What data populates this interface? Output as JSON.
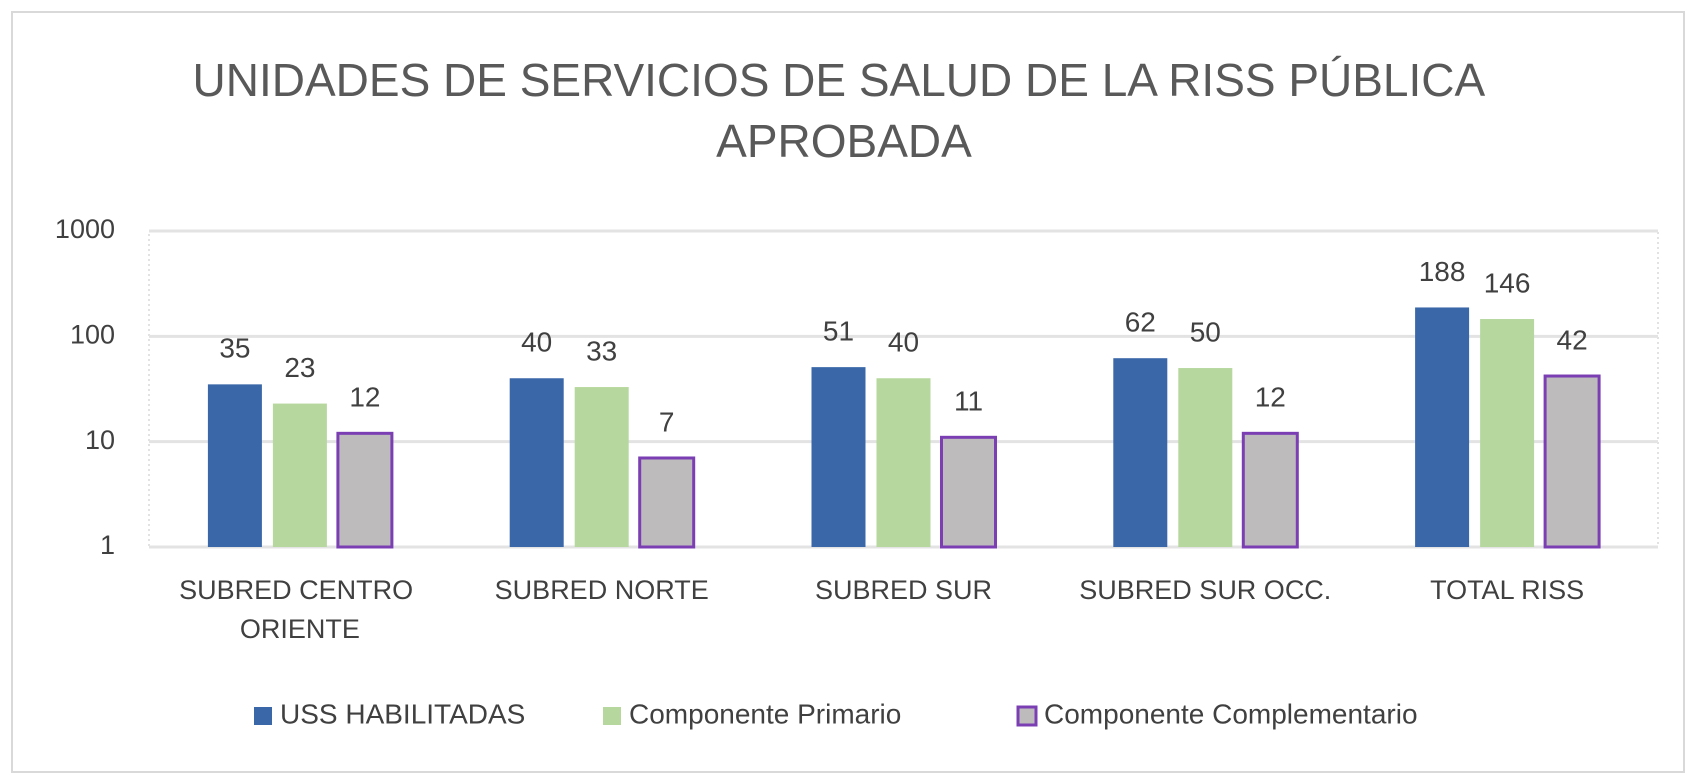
{
  "chart_data": {
    "type": "bar",
    "title": "UNIDADES DE SERVICIOS DE SALUD DE LA RISS PÚBLICA APROBADA",
    "categories": [
      "SUBRED CENTRO ORIENTE",
      "SUBRED NORTE",
      "SUBRED SUR",
      "SUBRED SUR OCC.",
      "TOTAL RISS"
    ],
    "series": [
      {
        "name": "USS HABILITADAS",
        "color": "#3a67a8",
        "values": [
          35,
          40,
          51,
          62,
          188
        ]
      },
      {
        "name": "Componente Primario",
        "color": "#b6d89e",
        "values": [
          23,
          33,
          40,
          50,
          146
        ]
      },
      {
        "name": "Componente Complementario",
        "color": "#bdbbbb",
        "edge_color": "#7b3fb3",
        "values": [
          12,
          7,
          11,
          12,
          42
        ]
      }
    ],
    "log_scale": true,
    "ylim": [
      1,
      1000
    ],
    "yticks": [
      1,
      10,
      100,
      1000
    ],
    "grid": true,
    "legend": "bottom"
  }
}
